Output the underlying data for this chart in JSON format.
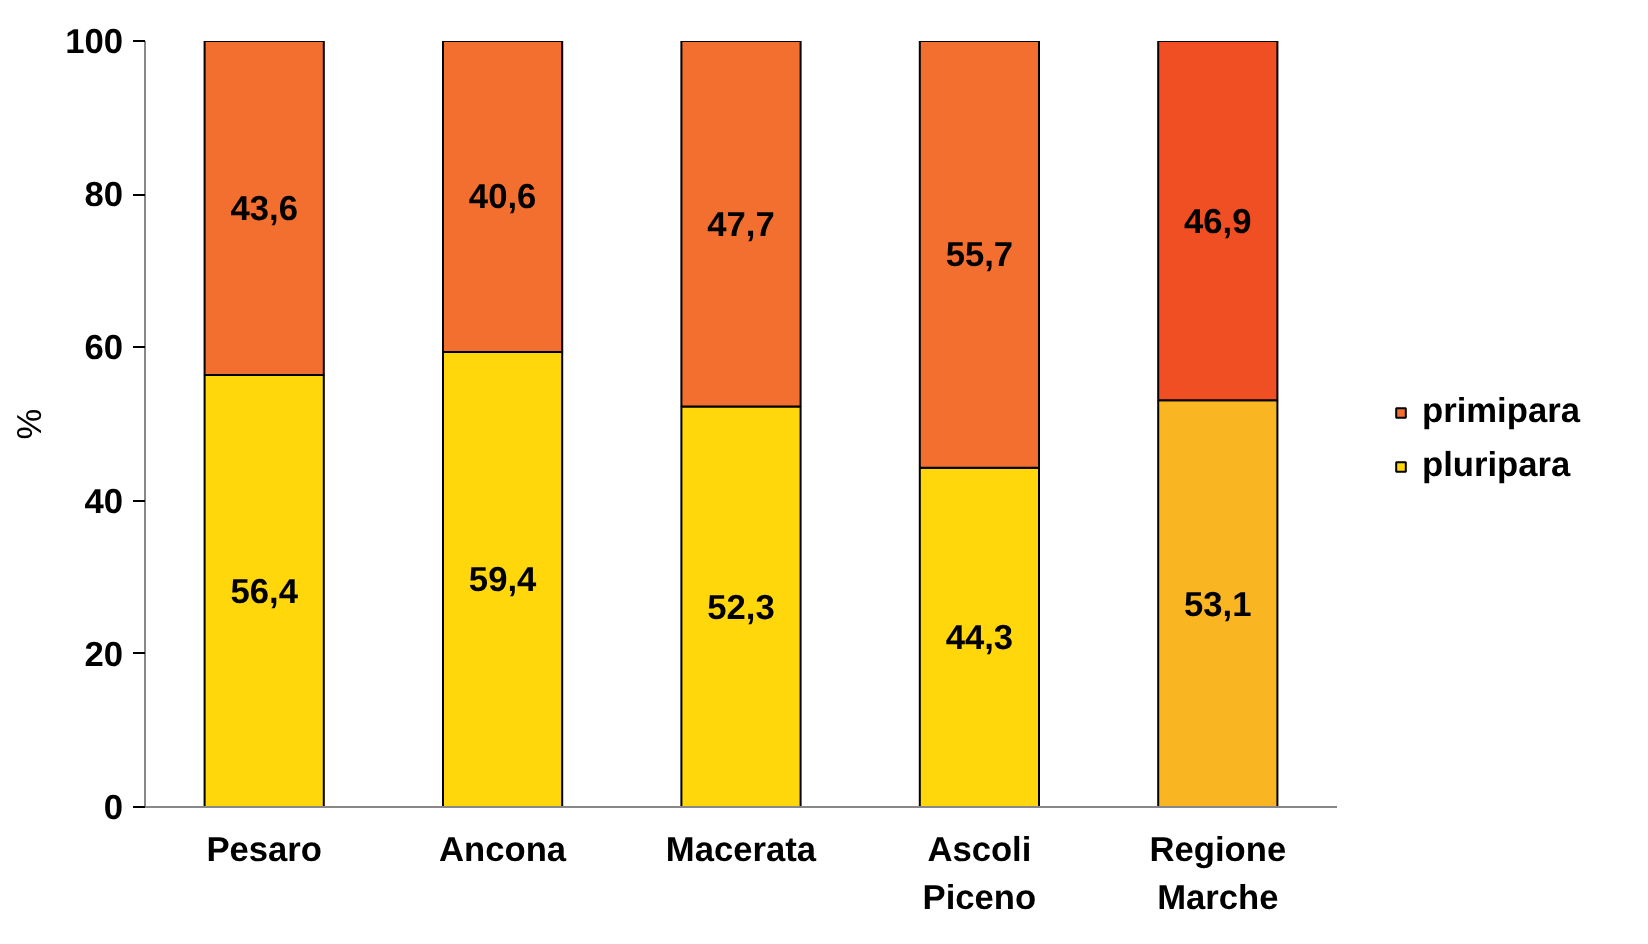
{
  "chart_data": {
    "type": "bar",
    "stacked": true,
    "ylabel": "%",
    "categories": [
      "Pesaro",
      "Ancona",
      "Macerata",
      "Ascoli Piceno",
      "Regione Marche"
    ],
    "series": [
      {
        "name": "pluripara",
        "color": "#ffd70a",
        "colors": [
          "#ffd70a",
          "#ffd70a",
          "#ffd70a",
          "#ffd70a",
          "#f9b522"
        ],
        "values": [
          56.4,
          59.4,
          52.3,
          44.3,
          53.1
        ],
        "value_labels": [
          "56,4",
          "59,4",
          "52,3",
          "44,3",
          "53,1"
        ]
      },
      {
        "name": "primipara",
        "color": "#f36f2f",
        "colors": [
          "#f36f2f",
          "#f36f2f",
          "#f36f2f",
          "#f36f2f",
          "#f04e23"
        ],
        "values": [
          43.6,
          40.6,
          47.7,
          55.7,
          46.9
        ],
        "value_labels": [
          "43,6",
          "40,6",
          "47,7",
          "55,7",
          "46,9"
        ]
      }
    ],
    "ylim": [
      0,
      100
    ],
    "yticks": [
      0,
      20,
      40,
      60,
      80,
      100
    ],
    "grid": false,
    "legend": "right"
  }
}
